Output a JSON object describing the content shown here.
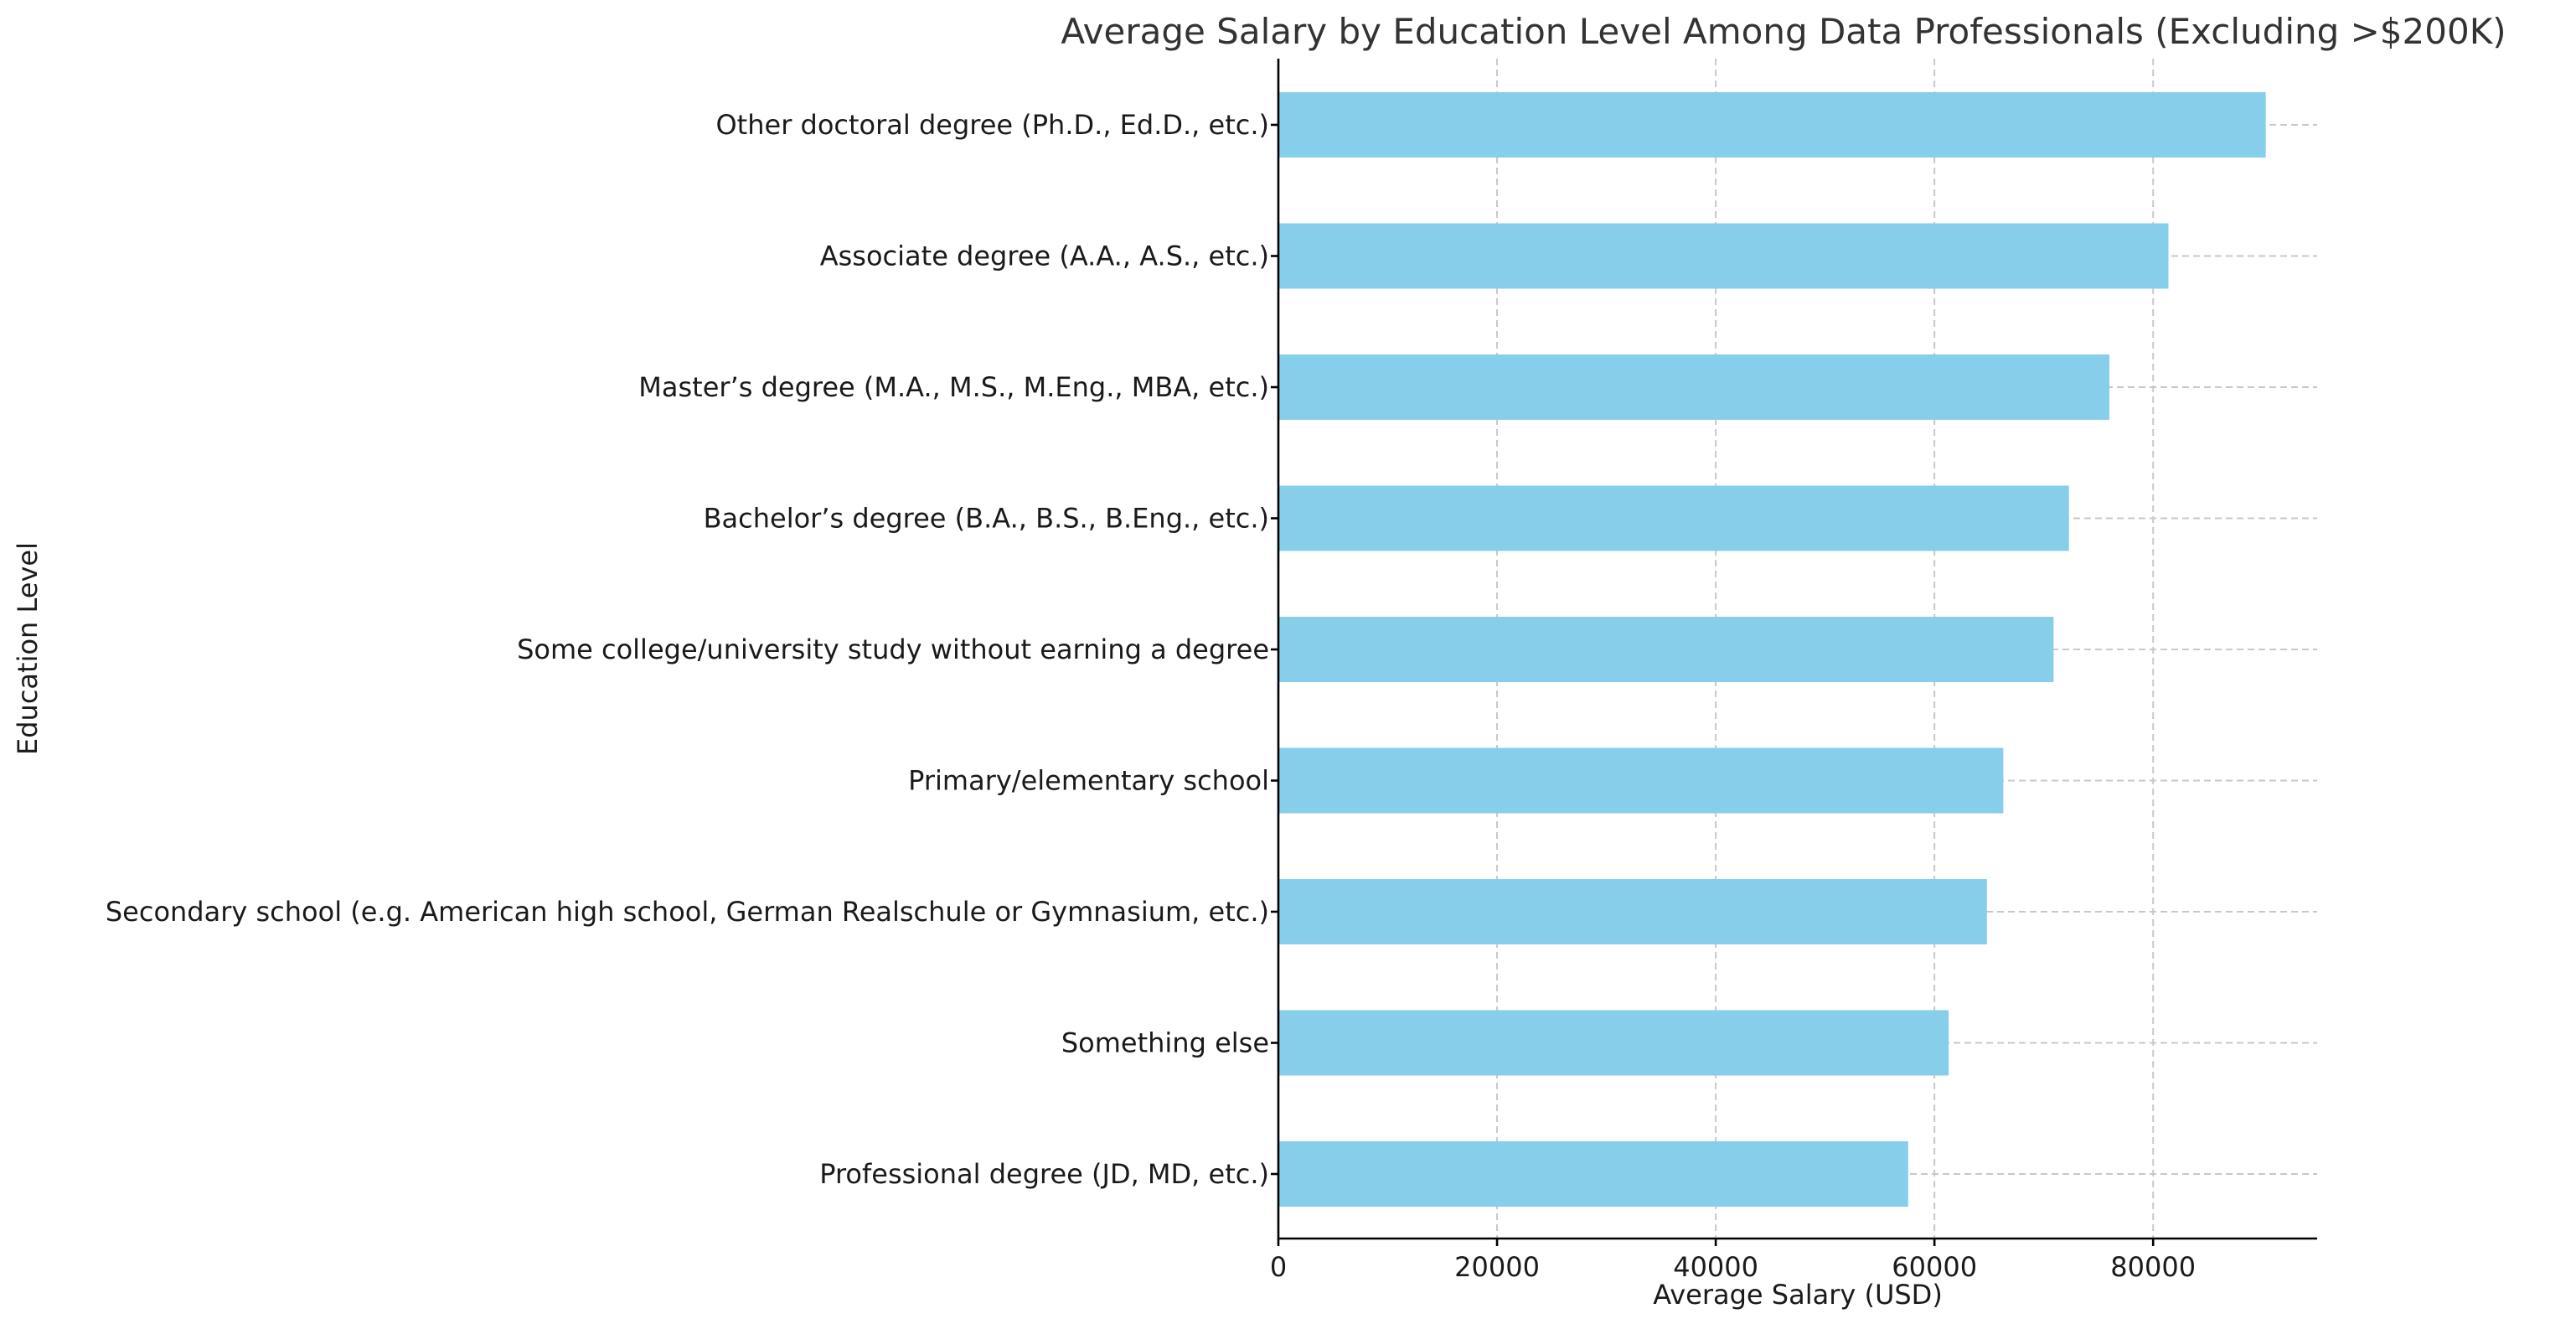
{
  "chart_data": {
    "type": "bar",
    "orientation": "horizontal",
    "title": "Average Salary by Education Level Among Data Professionals (Excluding >$200K)",
    "xlabel": "Average Salary (USD)",
    "ylabel": "Education Level",
    "categories": [
      "Other doctoral degree (Ph.D., Ed.D., etc.)",
      "Associate degree (A.A., A.S., etc.)",
      "Master’s degree (M.A., M.S., M.Eng., MBA, etc.)",
      "Bachelor’s degree (B.A., B.S., B.Eng., etc.)",
      "Some college/university study without earning a degree",
      "Primary/elementary school",
      "Secondary school (e.g. American high school, German Realschule or Gymnasium, etc.)",
      "Something else",
      "Professional degree (JD, MD, etc.)"
    ],
    "values": [
      90300,
      81400,
      76000,
      72300,
      70900,
      66300,
      64800,
      61300,
      57600
    ],
    "xlim": [
      0,
      95000
    ],
    "xticks": [
      0,
      20000,
      40000,
      60000,
      80000
    ],
    "grid": true,
    "bar_color": "#87CEEB"
  }
}
